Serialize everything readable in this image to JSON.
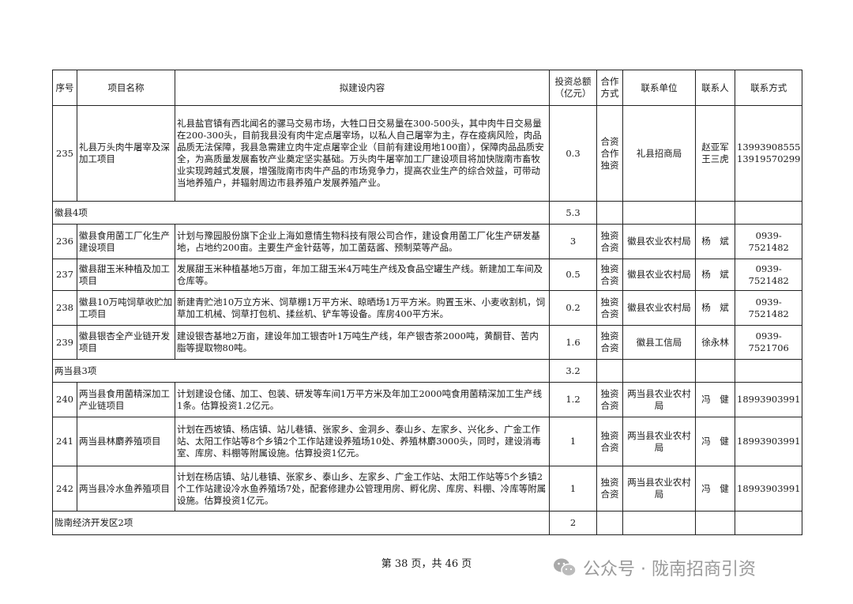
{
  "headers": [
    "序号",
    "项目名称",
    "拟建设内容",
    "投资总额\n（亿元）",
    "合作\n方式",
    "联系单位",
    "联系人",
    "联系方式"
  ],
  "rows": [
    {
      "type": "item",
      "no": "235",
      "name": "礼县万头肉牛屠宰及深加工项目",
      "content": "礼县盐官镇有西北闻名的骡马交易市场，大牲口日交易量在300-500头，其中肉牛日交易量在200-300头，目前我县没有肉牛定点屠宰场，以私人自己屠宰为主，存在疫病风险，肉品品质无法保障，我县急需建立肉牛定点屠宰企业（目前有建设用地100亩），保障肉品品质安全，为高质量发展畜牧产业奠定坚实基础。万头肉牛屠宰加工厂建设项目将加快陇南市畜牧业实现跨越式发展，增强陇南市肉牛产品的市场竞争力，提高农业生产的综合效益，可带动当地养殖户，并辐射周边市县养殖户发展养殖产业。",
      "amount": "0.3",
      "mode": "合资\n合作\n独资",
      "unit": "礼县招商局",
      "person": "赵亚军\n王三虎",
      "phone": "13993908555\n13919570299"
    },
    {
      "type": "group",
      "label": "徽县4项",
      "amount": "5.3"
    },
    {
      "type": "item",
      "no": "236",
      "name": "徽县食用菌工厂化生产建设项目",
      "content": "计划与豫园股份旗下企业上海如意情生物科技有限公司合作，建设食用菌工厂化生产研发基地，占地约200亩。主要生产金针菇等，加工菌菇酱、预制菜等产品。",
      "amount": "3",
      "mode": "独资\n合资",
      "unit": "徽县农业农村局",
      "person": "杨　斌",
      "phone": "0939-7521482"
    },
    {
      "type": "item",
      "no": "237",
      "name": "徽县甜玉米种植及加工项目",
      "content": "发展甜玉米种植基地5万亩，年加工甜玉米4万吨生产线及食品空罐生产线。新建加工车间及仓库等。",
      "amount": "0.5",
      "mode": "独资\n合资",
      "unit": "徽县农业农村局",
      "person": "杨　斌",
      "phone": "0939-7521482"
    },
    {
      "type": "item",
      "no": "238",
      "name": "徽县10万吨饲草收贮加工项目",
      "content": "新建青贮池10万立方米、饲草棚1万平方米、晾晒场1万平方米。购置玉米、小麦收割机，饲草加工机械、饲草打包机、揉丝机、铲车等设备。库房400平方米。",
      "amount": "0.2",
      "mode": "独资\n合资",
      "unit": "徽县农业农村局",
      "person": "杨　斌",
      "phone": "0939-7521482"
    },
    {
      "type": "item",
      "no": "239",
      "name": "徽县银杏全产业链开发项目",
      "content": "建设银杏基地2万亩，建设年加工银杏叶1万吨生产线，年产银杏茶2000吨，黄酮苷、苦内脂等提取物80吨。",
      "amount": "1.6",
      "mode": "独资\n合资",
      "unit": "徽县工信局",
      "person": "徐永林",
      "phone": "0939-7521706"
    },
    {
      "type": "group",
      "label": "两当县3项",
      "amount": "3.2"
    },
    {
      "type": "item",
      "no": "240",
      "name": "两当县食用菌精深加工产业链项目",
      "content": "计划建设仓储、加工、包装、研发等车间1万平方米及年加工2000吨食用菌精深加工生产线1条。估算投资1.2亿元。",
      "amount": "1.2",
      "mode": "独资\n合资",
      "unit": "两当县农业农村局",
      "person": "冯　健",
      "phone": "18993903991"
    },
    {
      "type": "item",
      "no": "241",
      "name": "两当县林麝养殖项目",
      "content": "计划在西坡镇、杨店镇、站儿巷镇、张家乡、金洞乡、泰山乡、左家乡、兴化乡、广金工作站、太阳工作站等8个乡镇2个工作站建设养殖场10处、养殖林麝3000头，同时，建设消毒室、库房、料棚等附属设施。估算投资1亿元。",
      "amount": "1",
      "mode": "独资\n合资",
      "unit": "两当县农业农村局",
      "person": "冯　健",
      "phone": "18993903991"
    },
    {
      "type": "item",
      "no": "242",
      "name": "两当县冷水鱼养殖项目",
      "content": "计划在杨店镇、站儿巷镇、张家乡、泰山乡、左家乡、广金工作站、太阳工作站等5个乡镇2个工作站建设冷水鱼养殖场7处，配套修建办公管理用房、孵化房、库房、料棚、冷库等附属设施。估算投资1亿元。",
      "amount": "1",
      "mode": "独资\n合资",
      "unit": "两当县农业农村局",
      "person": "冯　健",
      "phone": "18993903991"
    },
    {
      "type": "group",
      "label": "陇南经济开发区2项",
      "amount": "2"
    }
  ],
  "footer": "第 38 页，共 46 页",
  "watermark": "公众号 · 陇南招商引资"
}
